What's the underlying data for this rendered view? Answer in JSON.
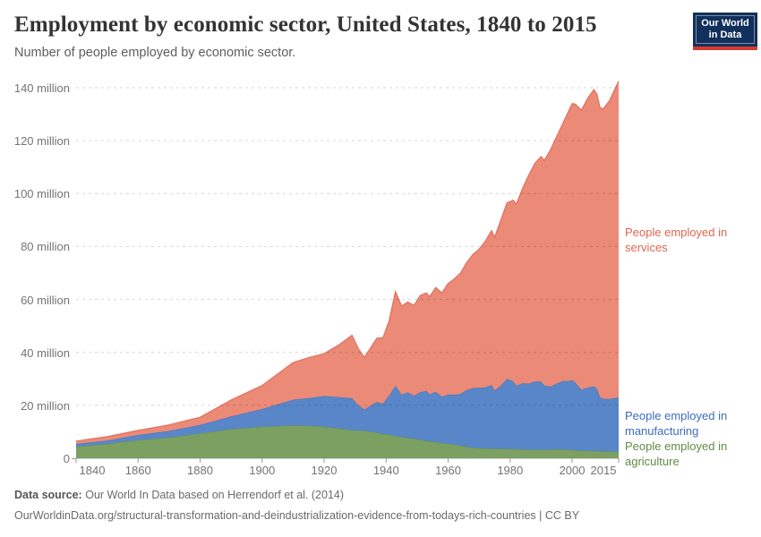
{
  "header": {
    "title": "Employment by economic sector, United States, 1840 to 2015",
    "subtitle": "Number of people employed by economic sector."
  },
  "logo": {
    "line1": "Our World",
    "line2": "in Data",
    "bg_color": "#12305c",
    "accent_color": "#d73b2f"
  },
  "legend": {
    "items": [
      {
        "label": "People employed in services",
        "color": "#e0654f"
      },
      {
        "label": "People employed in manufacturing",
        "color": "#3d6cc0"
      },
      {
        "label": "People employed in agriculture",
        "color": "#5f8b45"
      }
    ]
  },
  "footer": {
    "source_label": "Data source:",
    "source_text": "Our World In Data based on Herrendorf et al. (2014)",
    "url_line": "OurWorldinData.org/structural-transformation-and-deindustrialization-evidence-from-todays-rich-countries | CC BY"
  },
  "chart_data": {
    "type": "area",
    "stacked": true,
    "title": "Employment by economic sector, United States, 1840 to 2015",
    "xlabel": "",
    "ylabel": "Number of people employed",
    "ylim": [
      0,
      140
    ],
    "grid": "horizontal dashed",
    "legend_position": "right-edge labels",
    "x": [
      1840,
      1850,
      1860,
      1870,
      1880,
      1890,
      1900,
      1910,
      1915,
      1920,
      1925,
      1929,
      1931,
      1933,
      1935,
      1937,
      1939,
      1941,
      1943,
      1945,
      1947,
      1949,
      1951,
      1953,
      1954,
      1956,
      1958,
      1960,
      1962,
      1964,
      1966,
      1968,
      1970,
      1972,
      1974,
      1975,
      1977,
      1979,
      1981,
      1982,
      1984,
      1986,
      1988,
      1990,
      1991,
      1993,
      1995,
      1997,
      1999,
      2000,
      2001,
      2003,
      2005,
      2007,
      2008,
      2009,
      2010,
      2012,
      2014,
      2015
    ],
    "series": [
      {
        "name": "People employed in agriculture",
        "unit": "million people",
        "color": "#7ba061",
        "stroke": "#6d9350",
        "values": [
          4.4,
          5.4,
          6.9,
          7.8,
          9.4,
          11.0,
          11.9,
          12.4,
          12.3,
          11.9,
          11.2,
          10.6,
          10.5,
          10.4,
          10.1,
          9.7,
          9.2,
          8.9,
          8.4,
          8.0,
          7.7,
          7.4,
          7.0,
          6.5,
          6.3,
          6.2,
          5.7,
          5.5,
          5.2,
          4.8,
          4.3,
          4.0,
          3.8,
          3.7,
          3.7,
          3.6,
          3.6,
          3.5,
          3.5,
          3.4,
          3.3,
          3.2,
          3.2,
          3.2,
          3.2,
          3.1,
          3.4,
          3.3,
          3.2,
          3.1,
          3.0,
          2.9,
          2.8,
          2.7,
          2.7,
          2.6,
          2.6,
          2.5,
          2.5,
          2.5
        ]
      },
      {
        "name": "People employed in manufacturing",
        "unit": "million people",
        "color": "#5886c8",
        "stroke": "#4a77bd",
        "values": [
          1.0,
          1.3,
          1.9,
          2.5,
          3.2,
          4.8,
          6.7,
          9.7,
          10.4,
          11.6,
          11.9,
          12.1,
          9.6,
          8.0,
          9.7,
          11.6,
          11.4,
          14.8,
          19.0,
          16.0,
          17.2,
          16.2,
          18.0,
          18.9,
          17.8,
          18.9,
          17.5,
          18.6,
          18.8,
          19.5,
          21.5,
          22.5,
          22.8,
          23.0,
          24.0,
          22.0,
          23.8,
          26.5,
          25.5,
          24.0,
          25.0,
          25.0,
          25.8,
          25.8,
          24.3,
          24.0,
          24.8,
          25.8,
          26.0,
          26.5,
          25.6,
          23.0,
          23.8,
          24.5,
          23.5,
          20.5,
          19.9,
          19.9,
          20.3,
          20.5
        ]
      },
      {
        "name": "People employed in services",
        "unit": "million people",
        "color": "#ea8a77",
        "stroke": "#e3705e",
        "values": [
          1.1,
          1.5,
          1.7,
          2.3,
          2.9,
          6.2,
          8.9,
          14.1,
          15.3,
          16.0,
          19.9,
          23.8,
          21.4,
          19.7,
          22.0,
          24.0,
          24.9,
          28.3,
          35.6,
          33.5,
          34.1,
          34.2,
          36.5,
          37.1,
          36.9,
          39.4,
          39.3,
          41.9,
          43.8,
          45.7,
          48.2,
          50.5,
          52.4,
          55.3,
          58.3,
          57.9,
          62.6,
          66.5,
          68.5,
          68.6,
          73.7,
          78.8,
          82.5,
          85.0,
          85.0,
          89.4,
          93.3,
          97.4,
          102.3,
          104.4,
          105.2,
          105.6,
          109.4,
          112.1,
          111.3,
          109.4,
          109.5,
          112.6,
          117.2,
          119.5
        ]
      }
    ],
    "yticks": [
      {
        "v": 0,
        "label": "0"
      },
      {
        "v": 20,
        "label": "20 million"
      },
      {
        "v": 40,
        "label": "40 million"
      },
      {
        "v": 60,
        "label": "60 million"
      },
      {
        "v": 80,
        "label": "80 million"
      },
      {
        "v": 100,
        "label": "100 million"
      },
      {
        "v": 120,
        "label": "120 million"
      },
      {
        "v": 140,
        "label": "140 million"
      }
    ],
    "xticks": [
      1840,
      1860,
      1880,
      1900,
      1920,
      1940,
      1960,
      1980,
      2000,
      2015
    ]
  }
}
